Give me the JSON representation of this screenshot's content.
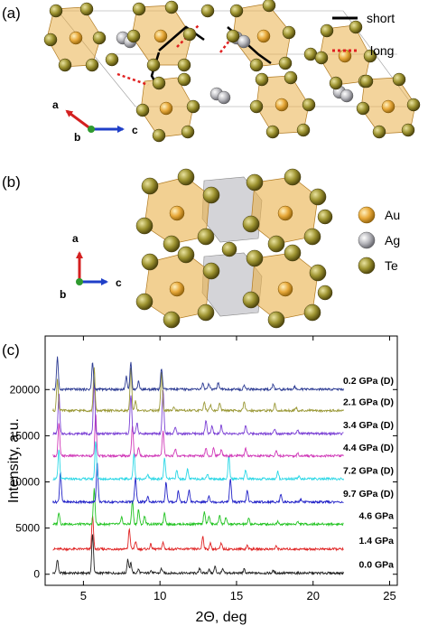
{
  "panels": {
    "a": {
      "label": "(a)",
      "legend": [
        {
          "name": "short",
          "color": "#000000",
          "style": "solid"
        },
        {
          "name": "long",
          "color": "#e02020",
          "style": "dotted"
        }
      ],
      "axes": {
        "a": "a",
        "b": "b",
        "c": "c"
      }
    },
    "b": {
      "label": "(b)",
      "legend": [
        {
          "name": "Au",
          "color": "#e8a93a"
        },
        {
          "name": "Ag",
          "color": "#b8b8bd"
        },
        {
          "name": "Te",
          "color": "#9d9330"
        }
      ],
      "axes": {
        "a": "a",
        "b": "b",
        "c": "c"
      }
    },
    "c": {
      "label": "(c)"
    }
  },
  "chart_data": {
    "type": "line",
    "xlabel": "2Θ, deg",
    "ylabel": "Intensity, a.u.",
    "xlim": [
      2.5,
      25.5
    ],
    "ylim": [
      -1200,
      25800
    ],
    "xticks": [
      5,
      10,
      15,
      20,
      25
    ],
    "yticks": [
      0,
      5000,
      10000,
      15000,
      20000
    ],
    "grid": false,
    "series": [
      {
        "name": "0.0 GPa",
        "color": "#222222",
        "offset": 0,
        "peaks": [
          [
            3.3,
            1500
          ],
          [
            5.6,
            4300
          ],
          [
            7.9,
            1500
          ],
          [
            8.1,
            1100
          ],
          [
            8.6,
            400
          ],
          [
            9.4,
            300
          ],
          [
            10.1,
            500
          ],
          [
            12.6,
            500
          ],
          [
            13.2,
            400
          ],
          [
            13.6,
            700
          ],
          [
            14.1,
            400
          ],
          [
            15.5,
            400
          ],
          [
            17.4,
            250
          ]
        ]
      },
      {
        "name": "1.4 GPa",
        "color": "#e02424",
        "offset": 2600,
        "peaks": [
          [
            5.6,
            3600
          ],
          [
            8.0,
            2200
          ],
          [
            8.4,
            800
          ],
          [
            9.4,
            500
          ],
          [
            10.2,
            700
          ],
          [
            12.8,
            1400
          ],
          [
            13.3,
            600
          ],
          [
            14.0,
            600
          ],
          [
            15.7,
            400
          ],
          [
            17.6,
            300
          ]
        ]
      },
      {
        "name": "4.6 GPa",
        "color": "#22c322",
        "offset": 5300,
        "peaks": [
          [
            3.4,
            1300
          ],
          [
            5.7,
            3800
          ],
          [
            7.5,
            700
          ],
          [
            8.2,
            2600
          ],
          [
            8.6,
            1600
          ],
          [
            9.0,
            900
          ],
          [
            10.3,
            1300
          ],
          [
            12.9,
            1400
          ],
          [
            13.2,
            900
          ],
          [
            13.9,
            1000
          ],
          [
            14.3,
            700
          ],
          [
            15.8,
            600
          ],
          [
            17.7,
            300
          ],
          [
            19.0,
            250
          ]
        ]
      },
      {
        "name": "9.7 GPa (D)",
        "color": "#2323c8",
        "offset": 7700,
        "peaks": [
          [
            3.5,
            3300
          ],
          [
            5.9,
            4300
          ],
          [
            8.4,
            2600
          ],
          [
            9.2,
            600
          ],
          [
            10.4,
            2200
          ],
          [
            11.2,
            1200
          ],
          [
            11.9,
            1300
          ],
          [
            13.2,
            700
          ],
          [
            14.6,
            2500
          ],
          [
            15.7,
            1200
          ],
          [
            17.9,
            900
          ],
          [
            19.2,
            300
          ]
        ]
      },
      {
        "name": "7.2 GPa (D)",
        "color": "#2ad7e6",
        "offset": 10200,
        "peaks": [
          [
            3.4,
            3200
          ],
          [
            5.8,
            4200
          ],
          [
            8.3,
            2800
          ],
          [
            9.2,
            500
          ],
          [
            10.3,
            2300
          ],
          [
            11.1,
            900
          ],
          [
            11.8,
            1000
          ],
          [
            13.1,
            600
          ],
          [
            14.5,
            2400
          ],
          [
            15.6,
            1000
          ],
          [
            17.7,
            800
          ],
          [
            19.1,
            300
          ]
        ]
      },
      {
        "name": "4.4 GPa (D)",
        "color": "#d038b8",
        "offset": 12700,
        "peaks": [
          [
            3.4,
            3500
          ],
          [
            5.8,
            4500
          ],
          [
            8.2,
            3300
          ],
          [
            8.6,
            900
          ],
          [
            10.2,
            2700
          ],
          [
            11.0,
            800
          ],
          [
            13.0,
            900
          ],
          [
            13.5,
            900
          ],
          [
            14.0,
            700
          ],
          [
            15.6,
            800
          ],
          [
            17.6,
            500
          ],
          [
            19.0,
            250
          ]
        ]
      },
      {
        "name": "3.4 GPa (D)",
        "color": "#7a3fd4",
        "offset": 15100,
        "peaks": [
          [
            3.4,
            4400
          ],
          [
            5.7,
            5400
          ],
          [
            8.1,
            4200
          ],
          [
            8.5,
            1200
          ],
          [
            10.2,
            4800
          ],
          [
            11.0,
            700
          ],
          [
            13.0,
            1400
          ],
          [
            13.4,
            800
          ],
          [
            14.0,
            900
          ],
          [
            15.6,
            900
          ],
          [
            17.5,
            600
          ],
          [
            19.0,
            300
          ]
        ]
      },
      {
        "name": "2.1 GPa (D)",
        "color": "#9a9836",
        "offset": 17600,
        "peaks": [
          [
            3.3,
            3400
          ],
          [
            5.7,
            4600
          ],
          [
            8.1,
            4500
          ],
          [
            8.4,
            1000
          ],
          [
            10.1,
            4200
          ],
          [
            10.9,
            500
          ],
          [
            12.9,
            1000
          ],
          [
            13.3,
            600
          ],
          [
            13.9,
            800
          ],
          [
            15.5,
            900
          ],
          [
            17.5,
            700
          ],
          [
            18.9,
            300
          ]
        ]
      },
      {
        "name": "0.2 GPa (D)",
        "color": "#2c3b93",
        "offset": 19900,
        "peaks": [
          [
            3.3,
            3500
          ],
          [
            5.6,
            2900
          ],
          [
            7.8,
            1400
          ],
          [
            8.1,
            2900
          ],
          [
            8.6,
            900
          ],
          [
            10.1,
            2300
          ],
          [
            12.8,
            700
          ],
          [
            13.2,
            600
          ],
          [
            13.8,
            700
          ],
          [
            15.5,
            500
          ],
          [
            17.4,
            600
          ],
          [
            18.8,
            300
          ]
        ]
      }
    ]
  }
}
